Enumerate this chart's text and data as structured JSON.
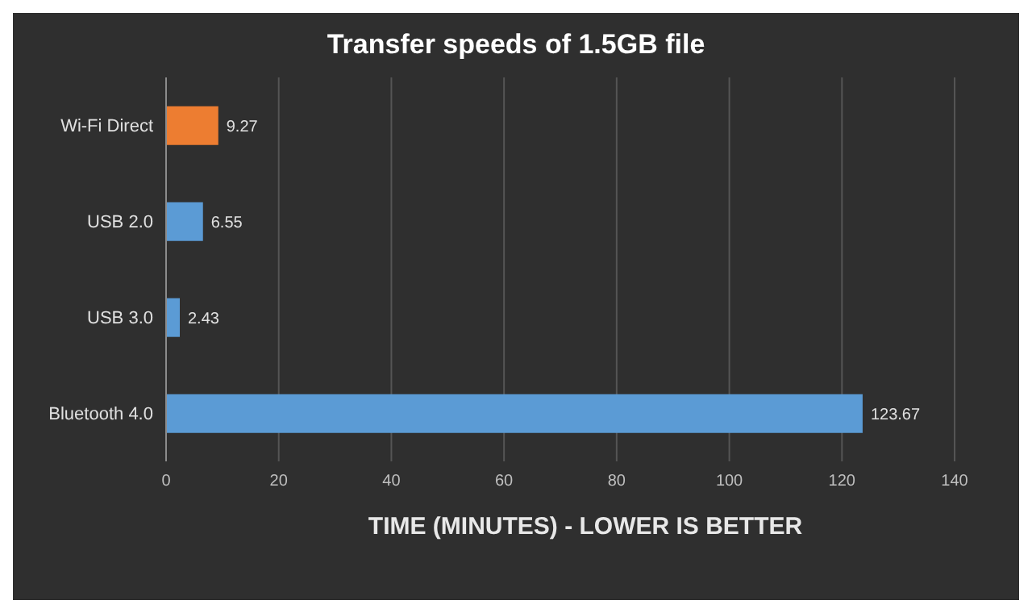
{
  "chart_data": {
    "type": "bar",
    "orientation": "horizontal",
    "title": "Transfer speeds of 1.5GB file",
    "xlabel": "TIME (MINUTES) - LOWER IS BETTER",
    "categories": [
      "Wi-Fi Direct",
      "USB 2.0",
      "USB 3.0",
      "Bluetooth 4.0"
    ],
    "values": [
      9.27,
      6.55,
      2.43,
      123.67
    ],
    "colors": [
      "#ed7d31",
      "#5b9bd5",
      "#5b9bd5",
      "#5b9bd5"
    ],
    "xlim": [
      0,
      140
    ],
    "xticks": [
      0,
      20,
      40,
      60,
      80,
      100,
      120,
      140
    ],
    "grid": "x",
    "data_labels": true
  }
}
